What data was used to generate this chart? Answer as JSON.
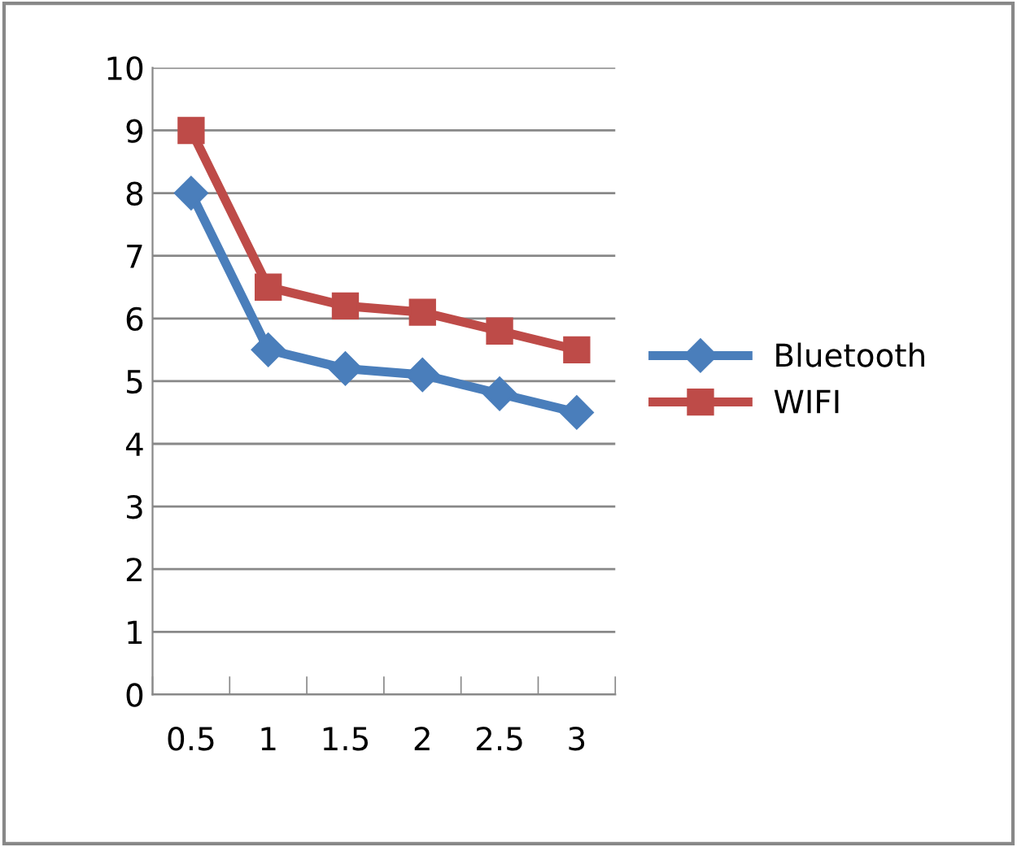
{
  "chart_data": {
    "type": "line",
    "categories": [
      "0.5",
      "1",
      "1.5",
      "2",
      "2.5",
      "3"
    ],
    "series": [
      {
        "name": "Bluetooth",
        "color": "#4a7ebb",
        "values": [
          8,
          5.5,
          5.2,
          5.1,
          4.8,
          4.5
        ],
        "marker": "diamond"
      },
      {
        "name": "WIFI",
        "color": "#be4b48",
        "values": [
          9,
          6.5,
          6.2,
          6.1,
          5.8,
          5.5
        ],
        "marker": "square"
      }
    ],
    "ylim": [
      0,
      10
    ],
    "yticks": [
      0,
      1,
      2,
      3,
      4,
      5,
      6,
      7,
      8,
      9,
      10
    ],
    "grid": "y",
    "legend": "right",
    "line_style": "solid"
  }
}
